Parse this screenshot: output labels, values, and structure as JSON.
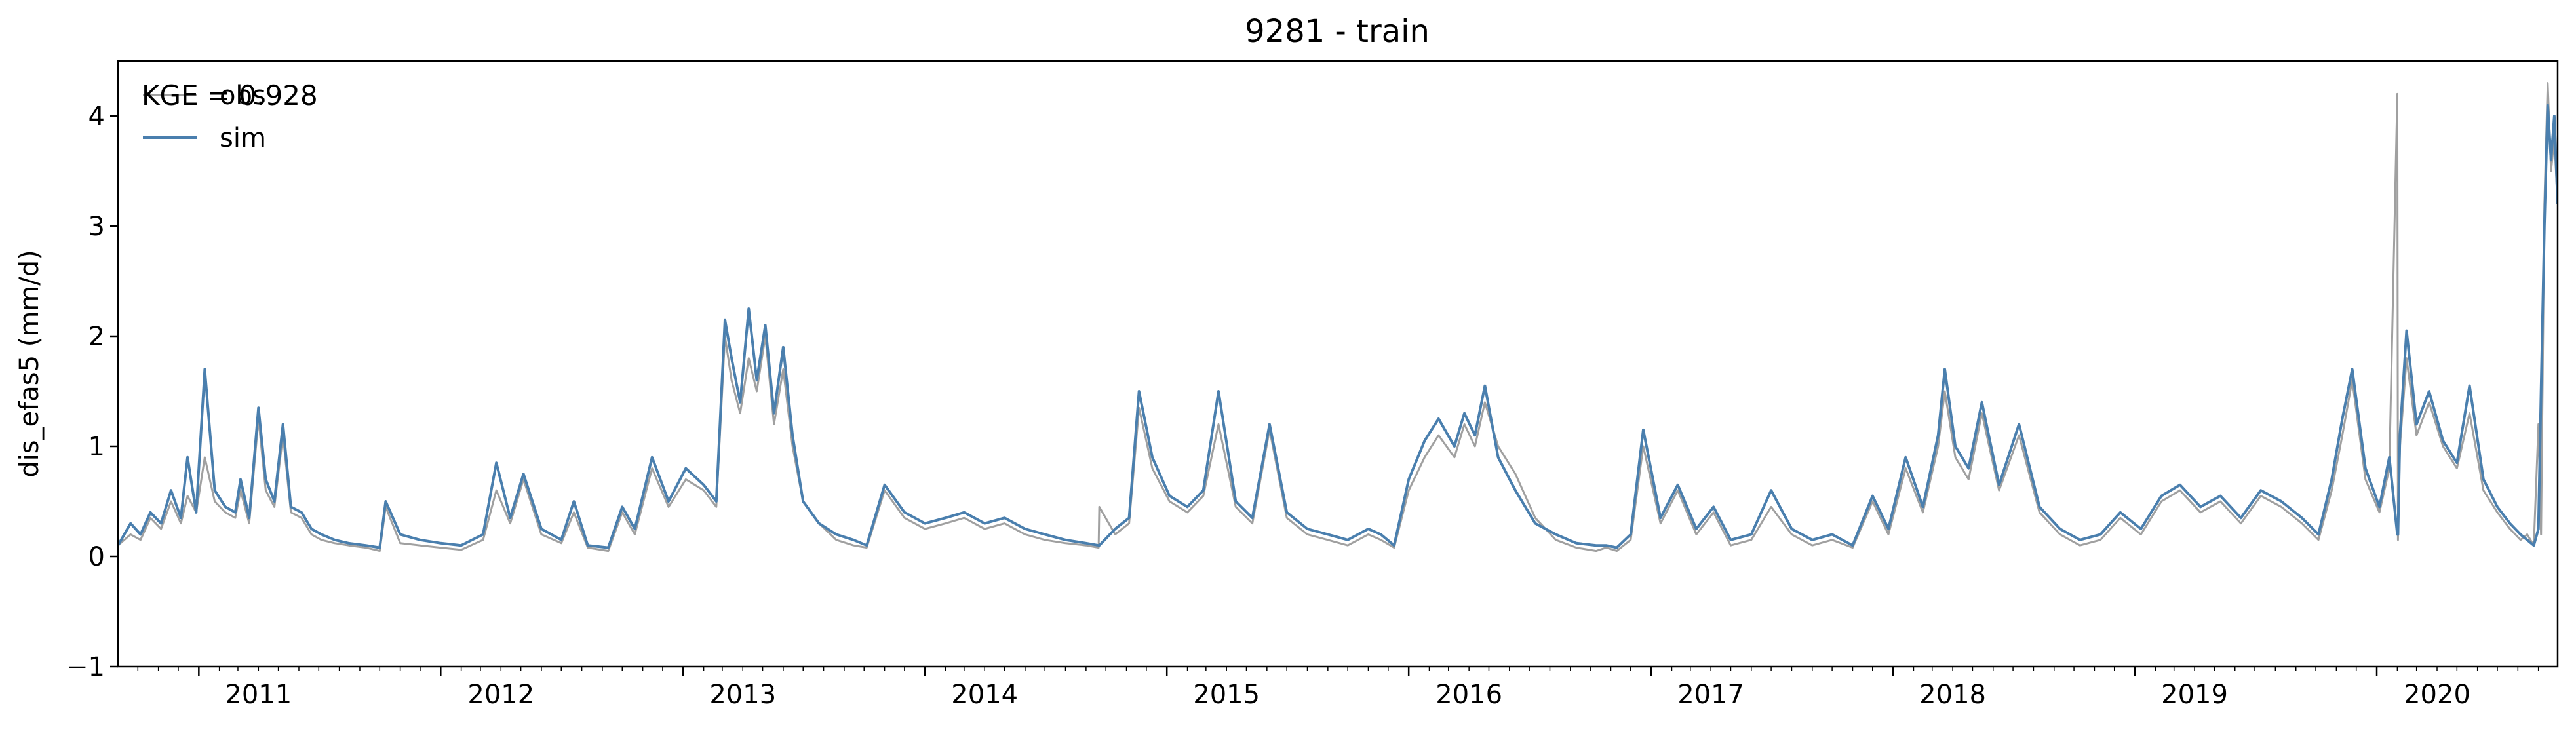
{
  "chart_data": {
    "type": "line",
    "title": "9281 - train",
    "xlabel": "",
    "ylabel": "dis_efas5 (mm/d)",
    "annotation": "KGE = 0.928",
    "xlim": [
      "2010-09-01",
      "2020-09-30"
    ],
    "ylim": [
      -1,
      4.5
    ],
    "yticks": [
      -1,
      0,
      1,
      2,
      3,
      4
    ],
    "xtick_labels": [
      "2011",
      "2012",
      "2013",
      "2014",
      "2015",
      "2016",
      "2017",
      "2018",
      "2019",
      "2020"
    ],
    "grid": false,
    "legend_position": "top-left",
    "colors": {
      "obs": "#a0a0a0",
      "sim": "#4a7fae",
      "axis": "#000000"
    },
    "series": [
      {
        "name": "obs",
        "x": [
          "2010-09-01",
          "2010-09-20",
          "2010-10-05",
          "2010-10-20",
          "2010-11-05",
          "2010-11-20",
          "2010-12-05",
          "2010-12-15",
          "2010-12-28",
          "2011-01-10",
          "2011-01-25",
          "2011-02-10",
          "2011-02-25",
          "2011-03-05",
          "2011-03-18",
          "2011-04-01",
          "2011-04-12",
          "2011-04-25",
          "2011-05-08",
          "2011-05-20",
          "2011-06-05",
          "2011-06-20",
          "2011-07-05",
          "2011-07-25",
          "2011-08-15",
          "2011-09-10",
          "2011-10-01",
          "2011-10-10",
          "2011-11-01",
          "2011-12-01",
          "2012-01-01",
          "2012-02-01",
          "2012-03-05",
          "2012-03-25",
          "2012-04-15",
          "2012-05-05",
          "2012-06-01",
          "2012-07-01",
          "2012-07-20",
          "2012-08-10",
          "2012-09-10",
          "2012-10-01",
          "2012-10-20",
          "2012-11-15",
          "2012-12-10",
          "2013-01-05",
          "2013-02-01",
          "2013-02-20",
          "2013-03-05",
          "2013-03-15",
          "2013-03-28",
          "2013-04-10",
          "2013-04-22",
          "2013-05-05",
          "2013-05-18",
          "2013-06-01",
          "2013-06-15",
          "2013-07-01",
          "2013-07-25",
          "2013-08-20",
          "2013-09-15",
          "2013-10-05",
          "2013-11-01",
          "2013-12-01",
          "2014-01-01",
          "2014-02-01",
          "2014-03-01",
          "2014-04-01",
          "2014-05-01",
          "2014-06-01",
          "2014-07-01",
          "2014-08-01",
          "2014-09-01",
          "2014-09-20",
          "2014-09-21",
          "2014-10-15",
          "2014-11-05",
          "2014-11-20",
          "2014-12-10",
          "2015-01-05",
          "2015-02-01",
          "2015-02-25",
          "2015-03-20",
          "2015-04-15",
          "2015-05-10",
          "2015-06-05",
          "2015-07-01",
          "2015-08-01",
          "2015-09-01",
          "2015-10-01",
          "2015-11-01",
          "2015-11-20",
          "2015-12-10",
          "2016-01-01",
          "2016-01-25",
          "2016-02-15",
          "2016-03-10",
          "2016-03-25",
          "2016-04-10",
          "2016-04-25",
          "2016-05-15",
          "2016-06-10",
          "2016-07-10",
          "2016-08-10",
          "2016-09-10",
          "2016-10-10",
          "2016-10-25",
          "2016-11-10",
          "2016-12-01",
          "2016-12-20",
          "2017-01-15",
          "2017-02-10",
          "2017-03-10",
          "2017-04-05",
          "2017-05-01",
          "2017-06-01",
          "2017-07-01",
          "2017-08-01",
          "2017-09-01",
          "2017-10-01",
          "2017-11-01",
          "2017-12-01",
          "2017-12-25",
          "2018-01-20",
          "2018-02-15",
          "2018-03-10",
          "2018-03-20",
          "2018-04-05",
          "2018-04-25",
          "2018-05-15",
          "2018-06-10",
          "2018-07-10",
          "2018-08-10",
          "2018-09-10",
          "2018-10-10",
          "2018-11-10",
          "2018-12-10",
          "2019-01-10",
          "2019-02-10",
          "2019-03-10",
          "2019-04-10",
          "2019-05-10",
          "2019-06-10",
          "2019-07-10",
          "2019-08-10",
          "2019-09-10",
          "2019-10-05",
          "2019-10-25",
          "2019-11-10",
          "2019-11-25",
          "2019-12-15",
          "2020-01-05",
          "2020-01-20",
          "2020-02-01",
          "2020-02-02",
          "2020-02-05",
          "2020-02-15",
          "2020-03-01",
          "2020-03-20",
          "2020-04-10",
          "2020-05-01",
          "2020-05-20",
          "2020-06-10",
          "2020-07-01",
          "2020-07-20",
          "2020-08-05",
          "2020-08-15",
          "2020-08-25",
          "2020-09-01",
          "2020-09-05",
          "2020-09-10",
          "2020-09-15",
          "2020-09-20",
          "2020-09-25",
          "2020-09-30"
        ],
        "y": [
          0.1,
          0.2,
          0.15,
          0.35,
          0.25,
          0.5,
          0.3,
          0.55,
          0.4,
          0.9,
          0.5,
          0.4,
          0.35,
          0.6,
          0.3,
          1.25,
          0.6,
          0.45,
          1.1,
          0.4,
          0.35,
          0.2,
          0.15,
          0.12,
          0.1,
          0.08,
          0.05,
          0.45,
          0.12,
          0.1,
          0.08,
          0.06,
          0.15,
          0.6,
          0.3,
          0.7,
          0.2,
          0.12,
          0.4,
          0.08,
          0.05,
          0.4,
          0.2,
          0.8,
          0.45,
          0.7,
          0.6,
          0.45,
          2.0,
          1.6,
          1.3,
          1.8,
          1.5,
          2.0,
          1.2,
          1.7,
          1.0,
          0.5,
          0.3,
          0.15,
          0.1,
          0.08,
          0.6,
          0.35,
          0.25,
          0.3,
          0.35,
          0.25,
          0.3,
          0.2,
          0.15,
          0.12,
          0.1,
          0.08,
          0.45,
          0.2,
          0.3,
          1.35,
          0.8,
          0.5,
          0.4,
          0.55,
          1.2,
          0.45,
          0.3,
          1.15,
          0.35,
          0.2,
          0.15,
          0.1,
          0.2,
          0.15,
          0.08,
          0.6,
          0.9,
          1.1,
          0.9,
          1.2,
          1.0,
          1.4,
          1.0,
          0.75,
          0.35,
          0.15,
          0.08,
          0.05,
          0.08,
          0.05,
          0.15,
          1.0,
          0.3,
          0.6,
          0.2,
          0.4,
          0.1,
          0.15,
          0.45,
          0.2,
          0.1,
          0.15,
          0.08,
          0.5,
          0.2,
          0.8,
          0.4,
          1.0,
          1.5,
          0.9,
          0.7,
          1.3,
          0.6,
          1.1,
          0.4,
          0.2,
          0.1,
          0.15,
          0.35,
          0.2,
          0.5,
          0.6,
          0.4,
          0.5,
          0.3,
          0.55,
          0.45,
          0.3,
          0.15,
          0.6,
          1.1,
          1.6,
          0.7,
          0.4,
          0.8,
          4.2,
          0.15,
          1.0,
          1.8,
          1.1,
          1.4,
          1.0,
          0.8,
          1.3,
          0.6,
          0.4,
          0.25,
          0.15,
          0.2,
          0.1,
          1.2,
          0.2,
          3.2,
          4.3,
          3.5,
          3.8,
          3.2
        ]
      },
      {
        "name": "sim",
        "x": [
          "2010-09-01",
          "2010-09-20",
          "2010-10-05",
          "2010-10-20",
          "2010-11-05",
          "2010-11-20",
          "2010-12-05",
          "2010-12-15",
          "2010-12-28",
          "2011-01-10",
          "2011-01-25",
          "2011-02-10",
          "2011-02-25",
          "2011-03-05",
          "2011-03-18",
          "2011-04-01",
          "2011-04-12",
          "2011-04-25",
          "2011-05-08",
          "2011-05-20",
          "2011-06-05",
          "2011-06-20",
          "2011-07-05",
          "2011-07-25",
          "2011-08-15",
          "2011-09-10",
          "2011-10-01",
          "2011-10-10",
          "2011-11-01",
          "2011-12-01",
          "2012-01-01",
          "2012-02-01",
          "2012-03-05",
          "2012-03-25",
          "2012-04-15",
          "2012-05-05",
          "2012-06-01",
          "2012-07-01",
          "2012-07-20",
          "2012-08-10",
          "2012-09-10",
          "2012-10-01",
          "2012-10-20",
          "2012-11-15",
          "2012-12-10",
          "2013-01-05",
          "2013-02-01",
          "2013-02-20",
          "2013-03-05",
          "2013-03-15",
          "2013-03-28",
          "2013-04-10",
          "2013-04-22",
          "2013-05-05",
          "2013-05-18",
          "2013-06-01",
          "2013-06-15",
          "2013-07-01",
          "2013-07-25",
          "2013-08-20",
          "2013-09-15",
          "2013-10-05",
          "2013-11-01",
          "2013-12-01",
          "2014-01-01",
          "2014-02-01",
          "2014-03-01",
          "2014-04-01",
          "2014-05-01",
          "2014-06-01",
          "2014-07-01",
          "2014-08-01",
          "2014-09-01",
          "2014-09-20",
          "2014-09-21",
          "2014-10-15",
          "2014-11-05",
          "2014-11-20",
          "2014-12-10",
          "2015-01-05",
          "2015-02-01",
          "2015-02-25",
          "2015-03-20",
          "2015-04-15",
          "2015-05-10",
          "2015-06-05",
          "2015-07-01",
          "2015-08-01",
          "2015-09-01",
          "2015-10-01",
          "2015-11-01",
          "2015-11-20",
          "2015-12-10",
          "2016-01-01",
          "2016-01-25",
          "2016-02-15",
          "2016-03-10",
          "2016-03-25",
          "2016-04-10",
          "2016-04-25",
          "2016-05-15",
          "2016-06-10",
          "2016-07-10",
          "2016-08-10",
          "2016-09-10",
          "2016-10-10",
          "2016-10-25",
          "2016-11-10",
          "2016-12-01",
          "2016-12-20",
          "2017-01-15",
          "2017-02-10",
          "2017-03-10",
          "2017-04-05",
          "2017-05-01",
          "2017-06-01",
          "2017-07-01",
          "2017-08-01",
          "2017-09-01",
          "2017-10-01",
          "2017-11-01",
          "2017-12-01",
          "2017-12-25",
          "2018-01-20",
          "2018-02-15",
          "2018-03-10",
          "2018-03-20",
          "2018-04-05",
          "2018-04-25",
          "2018-05-15",
          "2018-06-10",
          "2018-07-10",
          "2018-08-10",
          "2018-09-10",
          "2018-10-10",
          "2018-11-10",
          "2018-12-10",
          "2019-01-10",
          "2019-02-10",
          "2019-03-10",
          "2019-04-10",
          "2019-05-10",
          "2019-06-10",
          "2019-07-10",
          "2019-08-10",
          "2019-09-10",
          "2019-10-05",
          "2019-10-25",
          "2019-11-10",
          "2019-11-25",
          "2019-12-15",
          "2020-01-05",
          "2020-01-20",
          "2020-02-01",
          "2020-02-02",
          "2020-02-05",
          "2020-02-15",
          "2020-03-01",
          "2020-03-20",
          "2020-04-10",
          "2020-05-01",
          "2020-05-20",
          "2020-06-10",
          "2020-07-01",
          "2020-07-20",
          "2020-08-05",
          "2020-08-15",
          "2020-08-25",
          "2020-09-01",
          "2020-09-05",
          "2020-09-10",
          "2020-09-15",
          "2020-09-20",
          "2020-09-25",
          "2020-09-30"
        ],
        "y": [
          0.1,
          0.3,
          0.2,
          0.4,
          0.3,
          0.6,
          0.35,
          0.9,
          0.4,
          1.7,
          0.6,
          0.45,
          0.4,
          0.7,
          0.35,
          1.35,
          0.7,
          0.5,
          1.2,
          0.45,
          0.4,
          0.25,
          0.2,
          0.15,
          0.12,
          0.1,
          0.08,
          0.5,
          0.2,
          0.15,
          0.12,
          0.1,
          0.2,
          0.85,
          0.35,
          0.75,
          0.25,
          0.15,
          0.5,
          0.1,
          0.08,
          0.45,
          0.25,
          0.9,
          0.5,
          0.8,
          0.65,
          0.5,
          2.15,
          1.8,
          1.4,
          2.25,
          1.6,
          2.1,
          1.3,
          1.9,
          1.1,
          0.5,
          0.3,
          0.2,
          0.15,
          0.1,
          0.65,
          0.4,
          0.3,
          0.35,
          0.4,
          0.3,
          0.35,
          0.25,
          0.2,
          0.15,
          0.12,
          0.1,
          0.1,
          0.25,
          0.35,
          1.5,
          0.9,
          0.55,
          0.45,
          0.6,
          1.5,
          0.5,
          0.35,
          1.2,
          0.4,
          0.25,
          0.2,
          0.15,
          0.25,
          0.2,
          0.1,
          0.7,
          1.05,
          1.25,
          1.0,
          1.3,
          1.1,
          1.55,
          0.9,
          0.6,
          0.3,
          0.2,
          0.12,
          0.1,
          0.1,
          0.08,
          0.2,
          1.15,
          0.35,
          0.65,
          0.25,
          0.45,
          0.15,
          0.2,
          0.6,
          0.25,
          0.15,
          0.2,
          0.1,
          0.55,
          0.25,
          0.9,
          0.45,
          1.1,
          1.7,
          1.0,
          0.8,
          1.4,
          0.65,
          1.2,
          0.45,
          0.25,
          0.15,
          0.2,
          0.4,
          0.25,
          0.55,
          0.65,
          0.45,
          0.55,
          0.35,
          0.6,
          0.5,
          0.35,
          0.2,
          0.7,
          1.25,
          1.7,
          0.8,
          0.45,
          0.9,
          0.2,
          0.2,
          1.1,
          2.05,
          1.2,
          1.5,
          1.05,
          0.85,
          1.55,
          0.7,
          0.45,
          0.3,
          0.2,
          0.15,
          0.1,
          0.25,
          1.5,
          3.0,
          4.1,
          3.6,
          4.0,
          3.2
        ]
      }
    ]
  }
}
